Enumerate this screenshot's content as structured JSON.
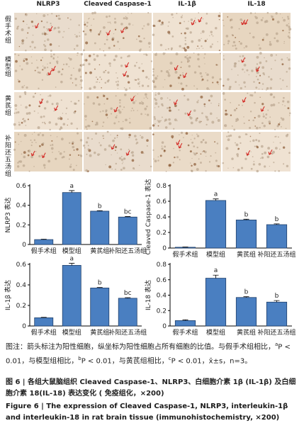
{
  "image_grid": {
    "columns": [
      "NLRP3",
      "Cleaved Caspase-1",
      "IL-1β",
      "IL-18"
    ],
    "rows": [
      "假手术组",
      "模型组",
      "黄芪组",
      "补阳还五汤组"
    ]
  },
  "chart_data": [
    {
      "type": "bar",
      "y_label": "NLRP3 表达",
      "categories": [
        "假手术组",
        "模型组",
        "黄芪组",
        "补阳还五汤组"
      ],
      "values": [
        0.05,
        0.53,
        0.34,
        0.28
      ],
      "errors": [
        0.004,
        0.02,
        0.005,
        0.005
      ],
      "significance": [
        null,
        "a",
        "b",
        "bc"
      ],
      "color": "#4a7fc1",
      "ylim": [
        0,
        0.6
      ],
      "yticks": [
        0,
        0.2,
        0.4,
        0.6
      ]
    },
    {
      "type": "bar",
      "y_label": "Cleaved Caspase-1 表达",
      "categories": [
        "假手术组",
        "模型组",
        "黄芪组",
        "补阳还五汤组"
      ],
      "values": [
        0.01,
        0.61,
        0.36,
        0.3
      ],
      "errors": [
        0.003,
        0.02,
        0.01,
        0.01
      ],
      "significance": [
        null,
        "a",
        "b",
        "b"
      ],
      "color": "#4a7fc1",
      "ylim": [
        0,
        0.8
      ],
      "yticks": [
        0,
        0.2,
        0.4,
        0.6,
        0.8
      ]
    },
    {
      "type": "bar",
      "y_label": "IL-1β 表达",
      "categories": [
        "假手术组",
        "模型组",
        "黄芪组",
        "补阳还五汤组"
      ],
      "values": [
        0.08,
        0.59,
        0.37,
        0.27
      ],
      "errors": [
        0.004,
        0.02,
        0.005,
        0.006
      ],
      "significance": [
        null,
        "a",
        "b",
        "bc"
      ],
      "color": "#4a7fc1",
      "ylim": [
        0,
        0.6
      ],
      "yticks": [
        0,
        0.2,
        0.4,
        0.6
      ]
    },
    {
      "type": "bar",
      "y_label": "IL-18 表达",
      "categories": [
        "假手术组",
        "模型组",
        "黄芪组",
        "补阳还五汤组"
      ],
      "values": [
        0.07,
        0.62,
        0.37,
        0.31
      ],
      "errors": [
        0.01,
        0.04,
        0.01,
        0.02
      ],
      "significance": [
        null,
        "a",
        "b",
        "b"
      ],
      "color": "#4a7fc1",
      "ylim": [
        0,
        0.8
      ],
      "yticks": [
        0,
        0.2,
        0.4,
        0.6,
        0.8
      ]
    }
  ],
  "note": [
    {
      "text": "图注：箭头标注为阳性细胞，纵坐标为阳性细胞占所有细胞的比值。与假手术组相比，"
    },
    {
      "text": "a",
      "sup": true
    },
    {
      "text": "P < 0.01，与模型组相比，"
    },
    {
      "text": "b",
      "sup": true
    },
    {
      "text": "P < 0.01，与黄芪组相比，"
    },
    {
      "text": "c",
      "sup": true
    },
    {
      "text": "P < 0.01，x̄±s，n=3。"
    }
  ],
  "caption_cn": "图 6 | 各组大鼠脑组织 Cleaved Caspase-1、NLRP3、白细胞介素 1β (IL-1β) 及白细胞介素 18(IL-18) 表达变化 ( 免疫组化，×200)",
  "caption_en": "Figure 6 | The expression of Cleaved Caspase-1, NLRP3, interleukin-1β and interleukin-18 in rat brain tissue (immunohistochemistry, ×200)"
}
